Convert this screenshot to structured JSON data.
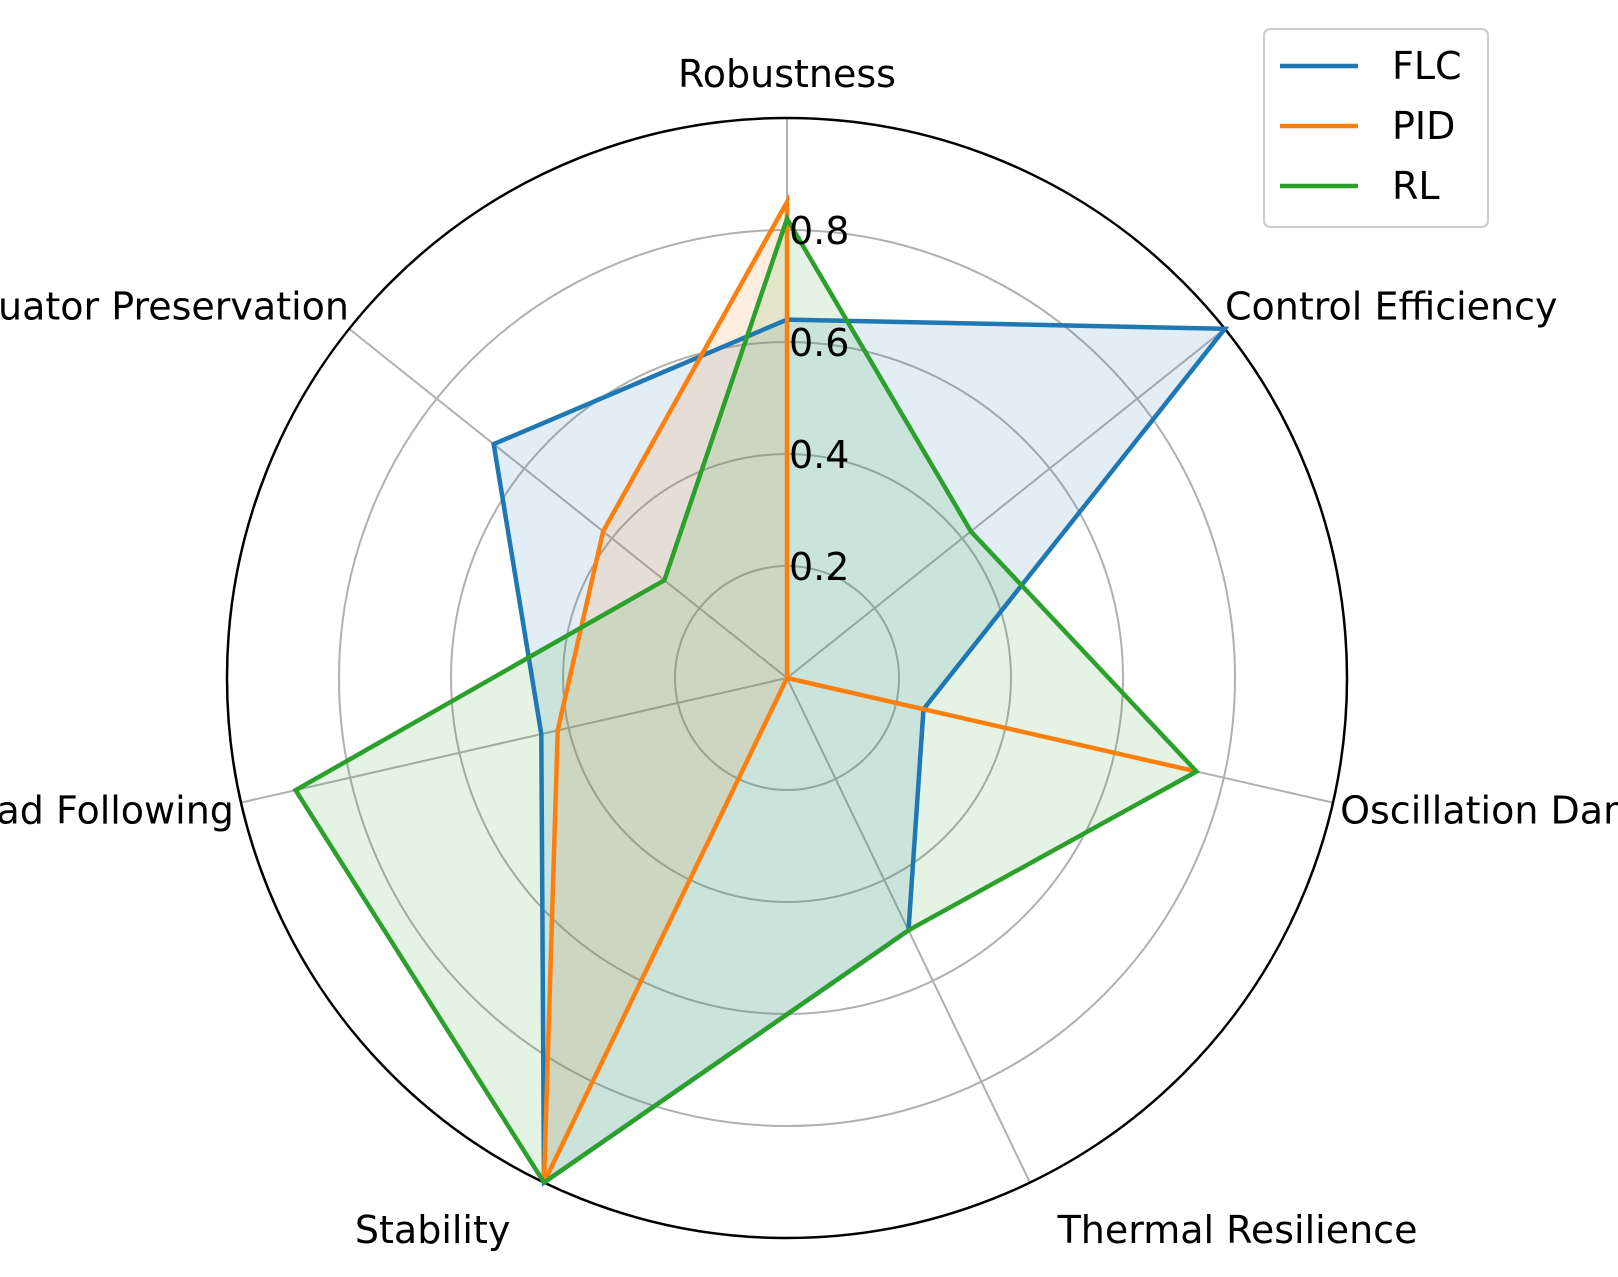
{
  "chart_data": {
    "type": "radar",
    "title": "",
    "categories": [
      "Robustness",
      "Control Efficiency",
      "Oscillation Damping",
      "Thermal Resilience",
      "Stability",
      "Load Following",
      "Actuator Preservation"
    ],
    "rticks": [
      0.2,
      0.4,
      0.6,
      0.8
    ],
    "rticklabels": [
      "0.2",
      "0.4",
      "0.6",
      "0.8"
    ],
    "rlim": [
      0,
      1.0
    ],
    "grid": true,
    "legend_position": "top-right",
    "series": [
      {
        "name": "FLC",
        "color": "#1f77b4",
        "values": [
          0.64,
          1.0,
          0.25,
          0.5,
          1.0,
          0.45,
          0.67
        ]
      },
      {
        "name": "PID",
        "color": "#ff7f0e",
        "values": [
          0.85,
          0.0,
          0.75,
          0.0,
          1.0,
          0.42,
          0.42
        ]
      },
      {
        "name": "RL",
        "color": "#2ca02c",
        "values": [
          0.82,
          0.42,
          0.75,
          0.5,
          1.0,
          0.9,
          0.28
        ]
      }
    ]
  }
}
